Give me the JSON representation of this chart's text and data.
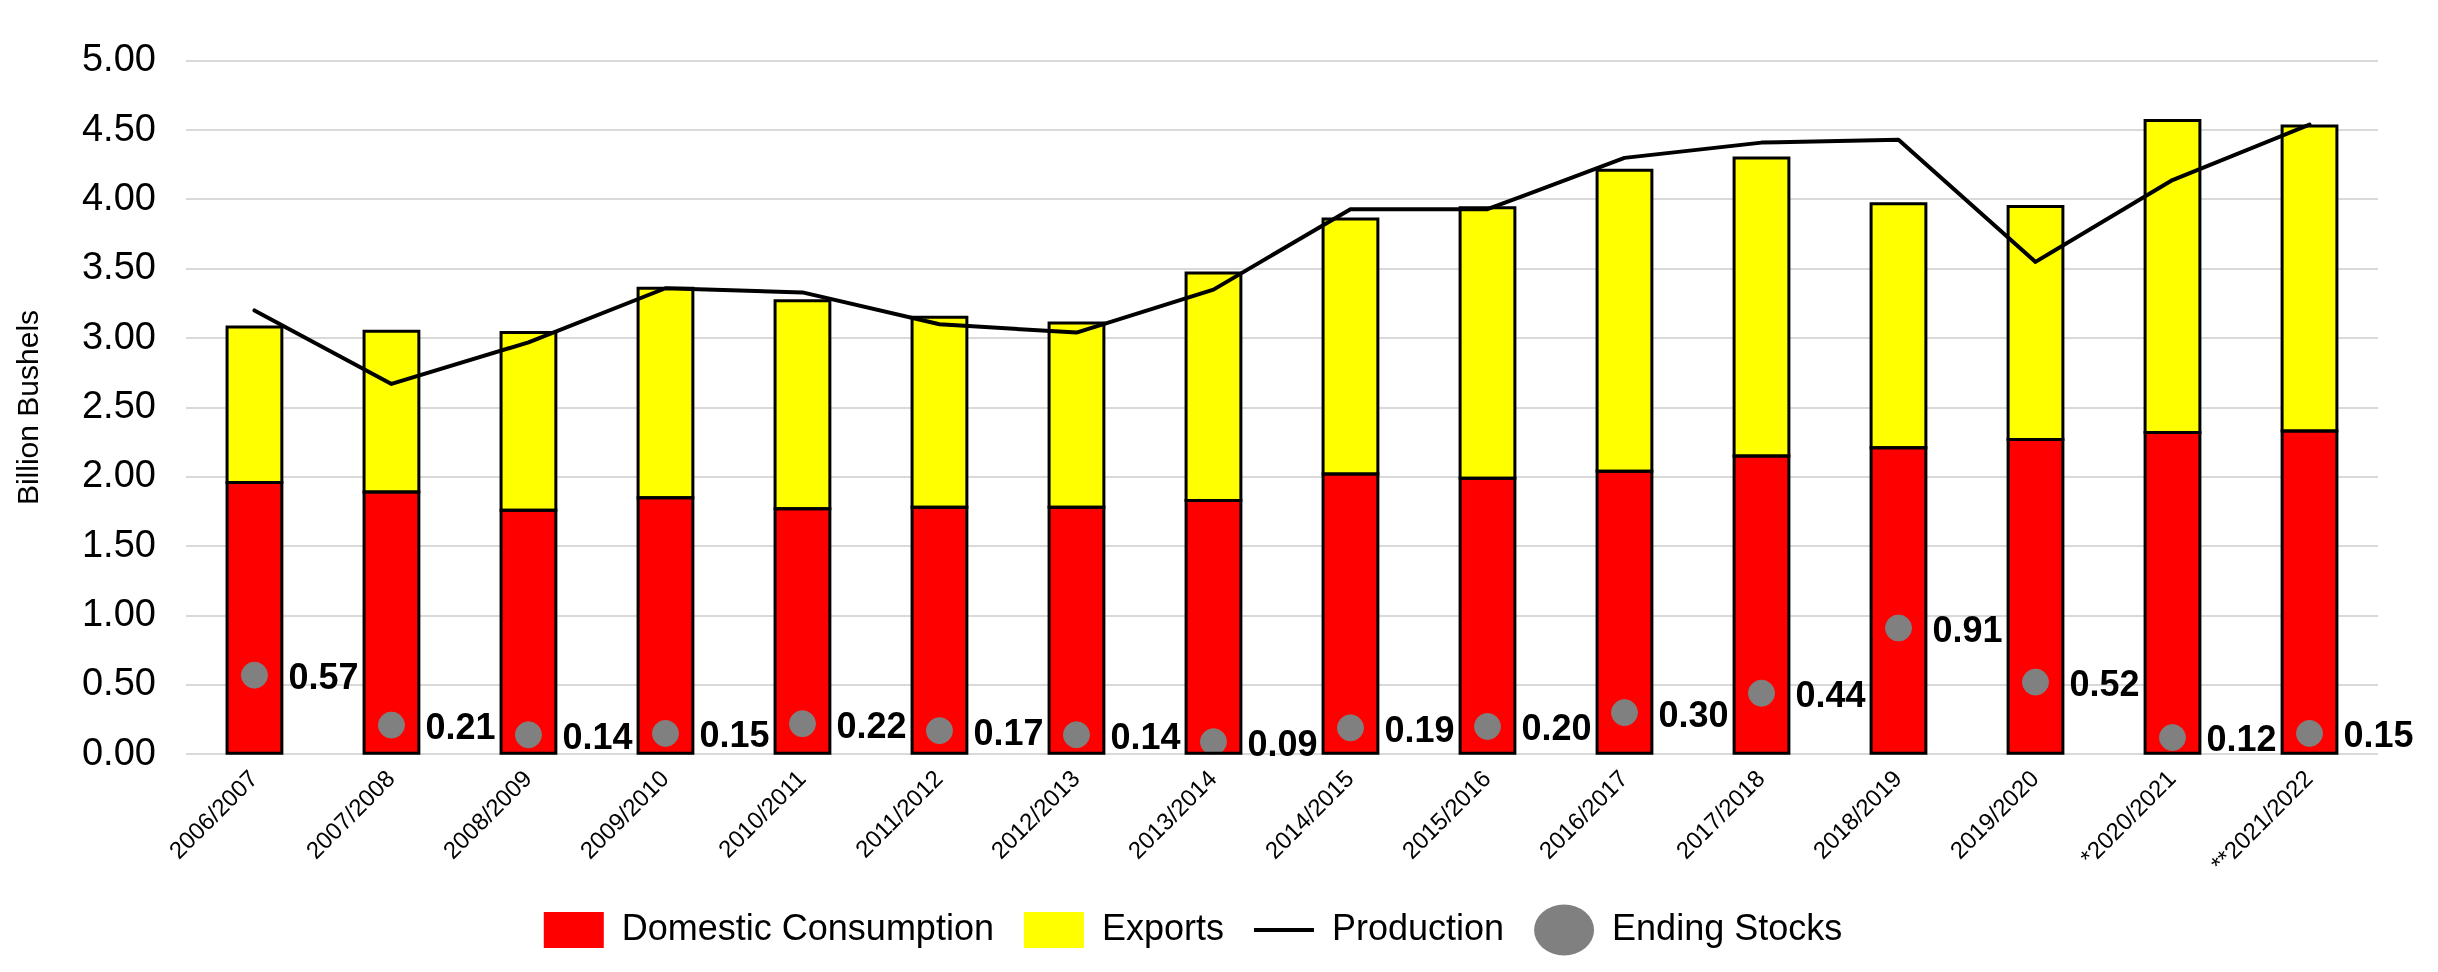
{
  "chart_data": {
    "type": "bar",
    "ylabel": "Billion Bushels",
    "stacked": true,
    "grid": "y",
    "legend": "bottom",
    "categories": [
      "2006/2007",
      "2007/2008",
      "2008/2009",
      "2009/2010",
      "2010/2011",
      "2011/2012",
      "2012/2013",
      "2013/2014",
      "2014/2015",
      "2015/2016",
      "2016/2017",
      "2017/2018",
      "2018/2019",
      "2019/2020",
      "*2020/2021",
      "**2021/2022"
    ],
    "ylim": [
      0,
      5
    ],
    "yticks": [
      {
        "value": 0,
        "label": "0.00"
      },
      {
        "value": 0.5,
        "label": "0.50"
      },
      {
        "value": 1,
        "label": "1.00"
      },
      {
        "value": 1.5,
        "label": "1.50"
      },
      {
        "value": 2,
        "label": "2.00"
      },
      {
        "value": 2.5,
        "label": "2.50"
      },
      {
        "value": 3,
        "label": "3.00"
      },
      {
        "value": 3.5,
        "label": "3.50"
      },
      {
        "value": 4,
        "label": "4.00"
      },
      {
        "value": 4.5,
        "label": "4.50"
      },
      {
        "value": 5,
        "label": "5.00"
      }
    ],
    "series": [
      {
        "name": "Domestic Consumption",
        "color": "#ff0000",
        "values": [
          1.96,
          1.89,
          1.76,
          1.85,
          1.77,
          1.78,
          1.78,
          1.83,
          2.02,
          1.99,
          2.04,
          2.15,
          2.21,
          2.27,
          2.32,
          2.33
        ]
      },
      {
        "name": "Exports",
        "color": "#ffff00",
        "values": [
          1.12,
          1.16,
          1.28,
          1.51,
          1.5,
          1.37,
          1.33,
          1.64,
          1.84,
          1.95,
          2.17,
          2.15,
          1.76,
          1.68,
          2.25,
          2.2
        ]
      },
      {
        "name": "Production",
        "type": "line",
        "color": "#000000",
        "marker": "none",
        "line_style": "solid",
        "values": [
          3.2,
          2.67,
          2.97,
          3.36,
          3.33,
          3.1,
          3.04,
          3.35,
          3.93,
          3.93,
          4.3,
          4.41,
          4.43,
          3.55,
          4.14,
          4.54
        ]
      },
      {
        "name": "Ending Stocks",
        "type": "scatter",
        "color": "#808080",
        "marker": "circle",
        "x": [
          "2006/2007",
          "2007/2008",
          "2008/2009",
          "2009/2010",
          "2010/2011",
          "2011/2012",
          "2012/2013",
          "2013/2014",
          "2014/2015",
          "2015/2016",
          "2016/2017",
          "2017/2018",
          "2018/2019",
          "2019/2020",
          "*2020/2021",
          "**2021/2022"
        ],
        "values": [
          0.57,
          0.21,
          0.14,
          0.15,
          0.22,
          0.17,
          0.14,
          0.09,
          0.19,
          0.2,
          0.3,
          0.44,
          0.91,
          0.52,
          0.12,
          0.15
        ],
        "value_labels": [
          "0.57",
          "0.21",
          "0.14",
          "0.15",
          "0.22",
          "0.17",
          "0.14",
          "0.09",
          "0.19",
          "0.20",
          "0.30",
          "0.44",
          "0.91",
          "0.52",
          "0.12",
          "0.15"
        ]
      }
    ]
  }
}
